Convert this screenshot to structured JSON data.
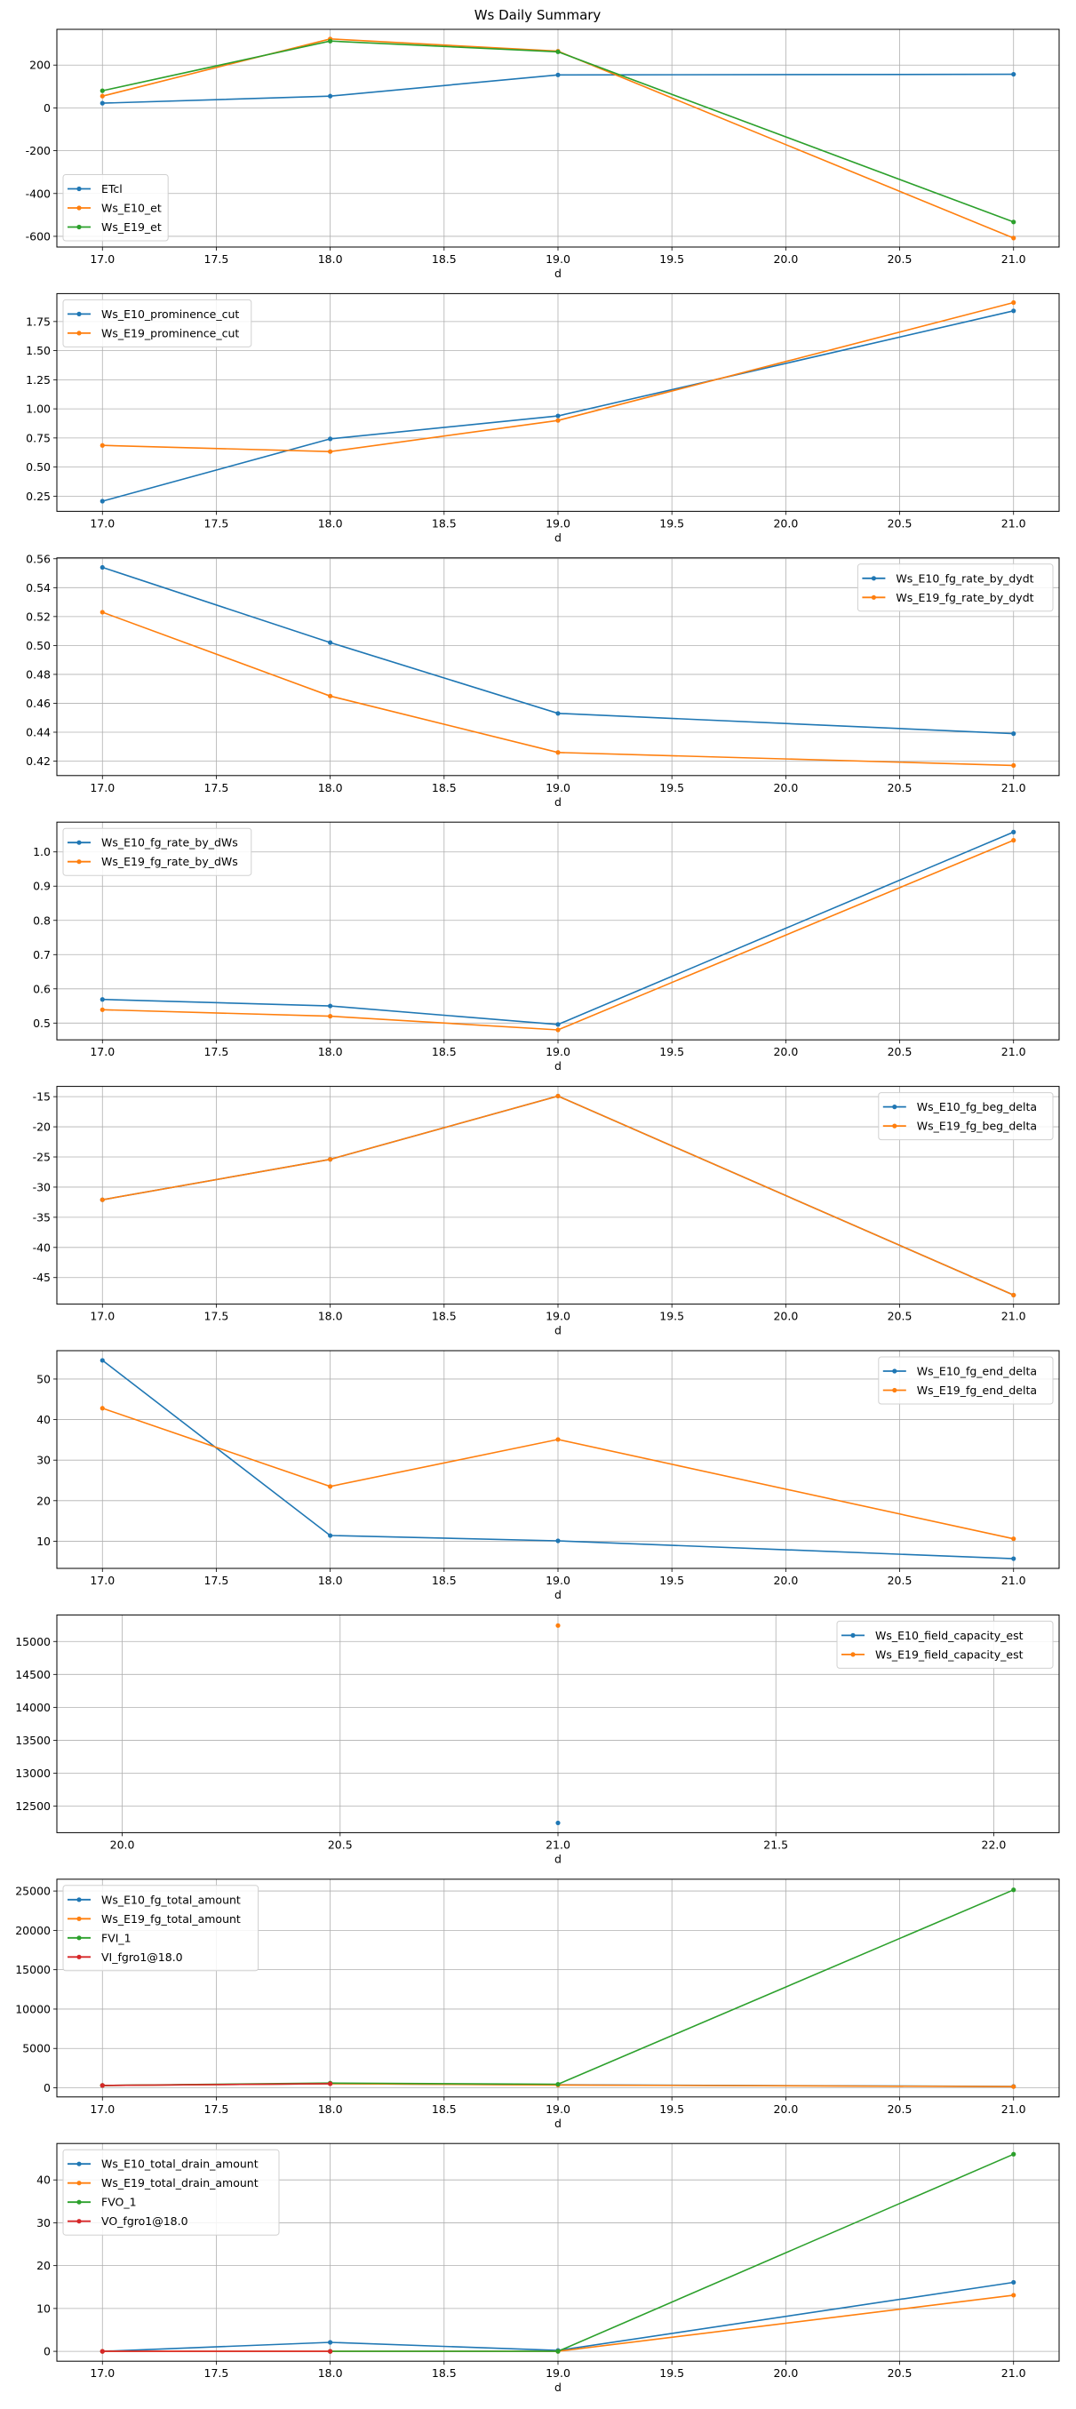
{
  "chart_data": {
    "title": "Ws Daily Summary",
    "colors": {
      "C0": "#1f77b4",
      "C1": "#ff7f0e",
      "C2": "#2ca02c",
      "C3": "#d62728"
    },
    "subplots": [
      {
        "type": "line",
        "xlabel": "d",
        "grid": true,
        "legend": "lower-left",
        "xlim": [
          16.8,
          21.2
        ],
        "xticks": [
          17.0,
          17.5,
          18.0,
          18.5,
          19.0,
          19.5,
          20.0,
          20.5,
          21.0
        ],
        "xticklabels": [
          "17.0",
          "17.5",
          "18.0",
          "18.5",
          "19.0",
          "19.5",
          "20.0",
          "20.5",
          "21.0"
        ],
        "ylim": [
          -650,
          367
        ],
        "yticks": [
          -600,
          -400,
          -200,
          0,
          200
        ],
        "yticklabels": [
          "-600",
          "-400",
          "-200",
          "0",
          "200"
        ],
        "series": [
          {
            "name": "ETcl",
            "color": "#1f77b4",
            "x": [
              17,
              18,
              19,
              21
            ],
            "y": [
              22,
              55,
              154,
              157
            ]
          },
          {
            "name": "Ws_E10_et",
            "color": "#ff7f0e",
            "x": [
              17,
              18,
              19,
              21
            ],
            "y": [
              55,
              322,
              265,
              -608
            ]
          },
          {
            "name": "Ws_E19_et",
            "color": "#2ca02c",
            "x": [
              17,
              18,
              19,
              21
            ],
            "y": [
              80,
              312,
              262,
              -533
            ]
          }
        ]
      },
      {
        "type": "line",
        "xlabel": "d",
        "grid": true,
        "legend": "upper-left",
        "xlim": [
          16.8,
          21.2
        ],
        "xticks": [
          17.0,
          17.5,
          18.0,
          18.5,
          19.0,
          19.5,
          20.0,
          20.5,
          21.0
        ],
        "xticklabels": [
          "17.0",
          "17.5",
          "18.0",
          "18.5",
          "19.0",
          "19.5",
          "20.0",
          "20.5",
          "21.0"
        ],
        "ylim": [
          0.12,
          1.99
        ],
        "yticks": [
          0.25,
          0.5,
          0.75,
          1.0,
          1.25,
          1.5,
          1.75
        ],
        "yticklabels": [
          "0.25",
          "0.50",
          "0.75",
          "1.00",
          "1.25",
          "1.50",
          "1.75"
        ],
        "series": [
          {
            "name": "Ws_E10_prominence_cut",
            "color": "#1f77b4",
            "x": [
              17,
              18,
              19,
              21
            ],
            "y": [
              0.207,
              0.742,
              0.939,
              1.842
            ]
          },
          {
            "name": "Ws_E19_prominence_cut",
            "color": "#ff7f0e",
            "x": [
              17,
              18,
              19,
              21
            ],
            "y": [
              0.686,
              0.633,
              0.9,
              1.913
            ]
          }
        ]
      },
      {
        "type": "line",
        "xlabel": "d",
        "grid": true,
        "legend": "upper-right",
        "xlim": [
          16.8,
          21.2
        ],
        "xticks": [
          17.0,
          17.5,
          18.0,
          18.5,
          19.0,
          19.5,
          20.0,
          20.5,
          21.0
        ],
        "xticklabels": [
          "17.0",
          "17.5",
          "18.0",
          "18.5",
          "19.0",
          "19.5",
          "20.0",
          "20.5",
          "21.0"
        ],
        "ylim": [
          0.41,
          0.5606
        ],
        "yticks": [
          0.42,
          0.44,
          0.46,
          0.48,
          0.5,
          0.52,
          0.54,
          0.56
        ],
        "yticklabels": [
          "0.42",
          "0.44",
          "0.46",
          "0.48",
          "0.50",
          "0.52",
          "0.54",
          "0.56"
        ],
        "series": [
          {
            "name": "Ws_E10_fg_rate_by_dydt",
            "color": "#1f77b4",
            "x": [
              17,
              18,
              19,
              21
            ],
            "y": [
              0.554,
              0.502,
              0.453,
              0.439
            ]
          },
          {
            "name": "Ws_E19_fg_rate_by_dydt",
            "color": "#ff7f0e",
            "x": [
              17,
              18,
              19,
              21
            ],
            "y": [
              0.523,
              0.465,
              0.426,
              0.417
            ]
          }
        ]
      },
      {
        "type": "line",
        "xlabel": "d",
        "grid": true,
        "legend": "upper-left",
        "xlim": [
          16.8,
          21.2
        ],
        "xticks": [
          17.0,
          17.5,
          18.0,
          18.5,
          19.0,
          19.5,
          20.0,
          20.5,
          21.0
        ],
        "xticklabels": [
          "17.0",
          "17.5",
          "18.0",
          "18.5",
          "19.0",
          "19.5",
          "20.0",
          "20.5",
          "21.0"
        ],
        "ylim": [
          0.451,
          1.087
        ],
        "yticks": [
          0.5,
          0.6,
          0.7,
          0.8,
          0.9,
          1.0
        ],
        "yticklabels": [
          "0.5",
          "0.6",
          "0.7",
          "0.8",
          "0.9",
          "1.0"
        ],
        "series": [
          {
            "name": "Ws_E10_fg_rate_by_dWs",
            "color": "#1f77b4",
            "x": [
              17,
              18,
              19,
              21
            ],
            "y": [
              0.569,
              0.55,
              0.496,
              1.058
            ]
          },
          {
            "name": "Ws_E19_fg_rate_by_dWs",
            "color": "#ff7f0e",
            "x": [
              17,
              18,
              19,
              21
            ],
            "y": [
              0.539,
              0.52,
              0.48,
              1.034
            ]
          }
        ]
      },
      {
        "type": "line",
        "xlabel": "d",
        "grid": true,
        "legend": "upper-right",
        "xlim": [
          16.8,
          21.2
        ],
        "xticks": [
          17.0,
          17.5,
          18.0,
          18.5,
          19.0,
          19.5,
          20.0,
          20.5,
          21.0
        ],
        "xticklabels": [
          "17.0",
          "17.5",
          "18.0",
          "18.5",
          "19.0",
          "19.5",
          "20.0",
          "20.5",
          "21.0"
        ],
        "ylim": [
          -49.4,
          -13.3
        ],
        "yticks": [
          -45,
          -40,
          -35,
          -30,
          -25,
          -20,
          -15
        ],
        "yticklabels": [
          "-45",
          "-40",
          "-35",
          "-30",
          "-25",
          "-20",
          "-15"
        ],
        "series": [
          {
            "name": "Ws_E10_fg_beg_delta",
            "color": "#1f77b4",
            "x": [
              17,
              18,
              19,
              21
            ],
            "y": [
              -32.1,
              -25.4,
              -14.9,
              -47.9
            ]
          },
          {
            "name": "Ws_E19_fg_beg_delta",
            "color": "#ff7f0e",
            "x": [
              17,
              18,
              19,
              21
            ],
            "y": [
              -32.1,
              -25.4,
              -14.9,
              -47.9
            ]
          }
        ]
      },
      {
        "type": "line",
        "xlabel": "d",
        "grid": true,
        "legend": "upper-right",
        "xlim": [
          16.8,
          21.2
        ],
        "xticks": [
          17.0,
          17.5,
          18.0,
          18.5,
          19.0,
          19.5,
          20.0,
          20.5,
          21.0
        ],
        "xticklabels": [
          "17.0",
          "17.5",
          "18.0",
          "18.5",
          "19.0",
          "19.5",
          "20.0",
          "20.5",
          "21.0"
        ],
        "ylim": [
          3.3,
          57
        ],
        "yticks": [
          10,
          20,
          30,
          40,
          50
        ],
        "yticklabels": [
          "10",
          "20",
          "30",
          "40",
          "50"
        ],
        "series": [
          {
            "name": "Ws_E10_fg_end_delta",
            "color": "#1f77b4",
            "x": [
              17,
              18,
              19,
              21
            ],
            "y": [
              54.6,
              11.4,
              10.1,
              5.7
            ]
          },
          {
            "name": "Ws_E19_fg_end_delta",
            "color": "#ff7f0e",
            "x": [
              17,
              18,
              19,
              21
            ],
            "y": [
              42.8,
              23.5,
              35.1,
              10.6
            ]
          }
        ]
      },
      {
        "type": "line",
        "xlabel": "d",
        "grid": true,
        "legend": "upper-right",
        "xlim": [
          19.85,
          22.15
        ],
        "xticks": [
          20.0,
          20.5,
          21.0,
          21.5,
          22.0
        ],
        "xticklabels": [
          "20.0",
          "20.5",
          "21.0",
          "21.5",
          "22.0"
        ],
        "ylim": [
          12097,
          15403
        ],
        "yticks": [
          12500,
          13000,
          13500,
          14000,
          14500,
          15000
        ],
        "yticklabels": [
          "12500",
          "13000",
          "13500",
          "14000",
          "14500",
          "15000"
        ],
        "series": [
          {
            "name": "Ws_E10_field_capacity_est",
            "color": "#1f77b4",
            "x": [
              21
            ],
            "y": [
              12245
            ]
          },
          {
            "name": "Ws_E19_field_capacity_est",
            "color": "#ff7f0e",
            "x": [
              21
            ],
            "y": [
              15242
            ]
          }
        ]
      },
      {
        "type": "line",
        "xlabel": "d",
        "grid": true,
        "legend": "upper-left",
        "xlim": [
          16.8,
          21.2
        ],
        "xticks": [
          17.0,
          17.5,
          18.0,
          18.5,
          19.0,
          19.5,
          20.0,
          20.5,
          21.0
        ],
        "xticklabels": [
          "17.0",
          "17.5",
          "18.0",
          "18.5",
          "19.0",
          "19.5",
          "20.0",
          "20.5",
          "21.0"
        ],
        "ylim": [
          -1160,
          26500
        ],
        "yticks": [
          0,
          5000,
          10000,
          15000,
          20000,
          25000
        ],
        "yticklabels": [
          "0",
          "5000",
          "10000",
          "15000",
          "20000",
          "25000"
        ],
        "series": [
          {
            "name": "Ws_E10_fg_total_amount",
            "color": "#1f77b4",
            "x": [
              17,
              18,
              19,
              21
            ],
            "y": [
              300,
              520,
              380,
              170
            ]
          },
          {
            "name": "Ws_E19_fg_total_amount",
            "color": "#ff7f0e",
            "x": [
              17,
              18,
              19,
              21
            ],
            "y": [
              300,
              520,
              350,
              150
            ]
          },
          {
            "name": "FVI_1",
            "color": "#2ca02c",
            "x": [
              17,
              18,
              19,
              21
            ],
            "y": [
              300,
              600,
              450,
              25150
            ]
          },
          {
            "name": "VI_fgro1@18.0",
            "color": "#d62728",
            "x": [
              17,
              18
            ],
            "y": [
              300,
              520
            ]
          }
        ]
      },
      {
        "type": "line",
        "xlabel": "d",
        "grid": true,
        "legend": "upper-left",
        "xlim": [
          16.8,
          21.2
        ],
        "xticks": [
          17.0,
          17.5,
          18.0,
          18.5,
          19.0,
          19.5,
          20.0,
          20.5,
          21.0
        ],
        "xticklabels": [
          "17.0",
          "17.5",
          "18.0",
          "18.5",
          "19.0",
          "19.5",
          "20.0",
          "20.5",
          "21.0"
        ],
        "ylim": [
          -2.3,
          48.5
        ],
        "yticks": [
          0,
          10,
          20,
          30,
          40
        ],
        "yticklabels": [
          "0",
          "10",
          "20",
          "30",
          "40"
        ],
        "series": [
          {
            "name": "Ws_E10_total_drain_amount",
            "color": "#1f77b4",
            "x": [
              17,
              18,
              19,
              21
            ],
            "y": [
              0,
              2.1,
              0.2,
              16.1
            ]
          },
          {
            "name": "Ws_E19_total_drain_amount",
            "color": "#ff7f0e",
            "x": [
              17,
              18,
              19,
              21
            ],
            "y": [
              0,
              0,
              0,
              13.1
            ]
          },
          {
            "name": "FVO_1",
            "color": "#2ca02c",
            "x": [
              18,
              19,
              21
            ],
            "y": [
              0,
              0,
              46.0
            ]
          },
          {
            "name": "VO_fgro1@18.0",
            "color": "#d62728",
            "x": [
              17,
              18
            ],
            "y": [
              0,
              0
            ]
          }
        ]
      }
    ]
  }
}
